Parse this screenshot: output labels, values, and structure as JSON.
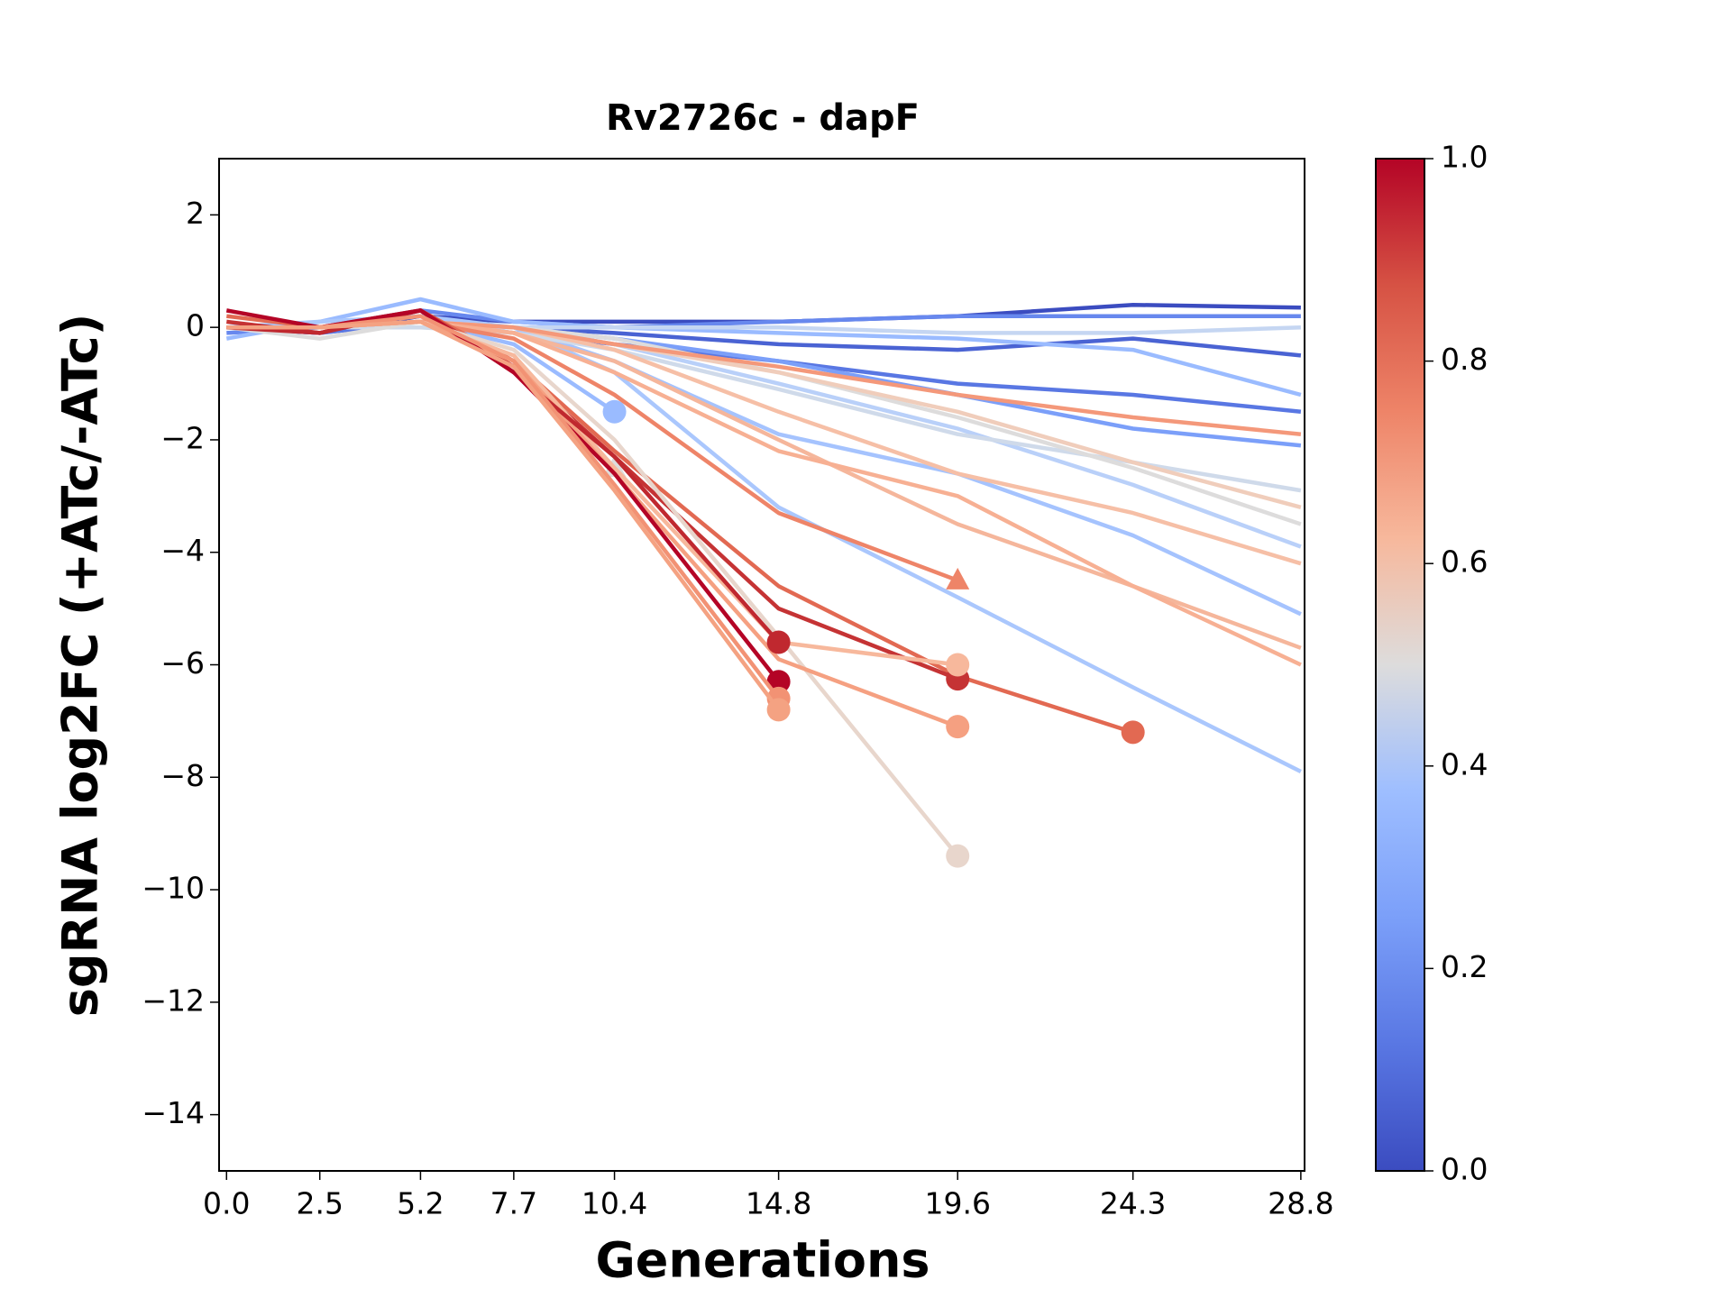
{
  "chart_data": {
    "type": "line",
    "title": "Rv2726c - dapF",
    "xlabel": "Generations",
    "ylabel": "sgRNA log2FC (+ATc/-ATc)",
    "x": [
      0,
      2.5,
      5.2,
      7.7,
      10.4,
      14.8,
      19.6,
      24.3,
      28.8
    ],
    "xlim": [
      -0.2,
      28.9
    ],
    "xticks": [
      {
        "value": 0,
        "label": "0.0"
      },
      2.5,
      5.2,
      7.7,
      10.4,
      14.8,
      19.6,
      24.3,
      28.8
    ],
    "ylim": [
      -15,
      3
    ],
    "yticks": [
      {
        "value": -14,
        "label": "−14"
      },
      {
        "value": -12,
        "label": "−12"
      },
      {
        "value": -10,
        "label": "−10"
      },
      {
        "value": -8,
        "label": "−8"
      },
      {
        "value": -6,
        "label": "−6"
      },
      {
        "value": -4,
        "label": "−4"
      },
      {
        "value": -2,
        "label": "−2"
      },
      0,
      2
    ],
    "colorbar": {
      "lim": [
        0,
        1
      ],
      "ticks": [
        {
          "value": 0,
          "label": "0.0"
        },
        0.2,
        0.4,
        0.6,
        0.8,
        {
          "value": 1,
          "label": "1.0"
        }
      ]
    },
    "series": [
      {
        "color": "#3b4cc0",
        "values": [
          0,
          -0.1,
          0.2,
          0.1,
          0.1,
          0.1,
          0.2,
          0.4,
          0.35
        ]
      },
      {
        "color": "#4a63d3",
        "values": [
          0,
          -0.1,
          0.1,
          0,
          -0.1,
          -0.3,
          -0.4,
          -0.2,
          -0.5
        ]
      },
      {
        "color": "#5977e3",
        "values": [
          0,
          -0.1,
          0.1,
          -0.1,
          -0.3,
          -0.6,
          -1.0,
          -1.2,
          -1.5
        ]
      },
      {
        "color": "#6788ee",
        "values": [
          -0.1,
          0,
          0.3,
          0.1,
          0,
          0.1,
          0.2,
          0.2,
          0.2
        ]
      },
      {
        "color": "#7b9ff9",
        "values": [
          0,
          0,
          0.1,
          0,
          -0.2,
          -0.6,
          -1.2,
          -1.8,
          -2.1
        ]
      },
      {
        "color": "#9abbff",
        "values": [
          -0.2,
          0.1,
          0.5,
          0.1,
          0,
          -0.1,
          -0.2,
          -0.4,
          -1.2
        ]
      },
      {
        "color": "#aac7fd",
        "values": [
          0,
          0.1,
          0.2,
          0,
          -0.8,
          -3.2,
          -4.8,
          -6.4,
          -7.9
        ]
      },
      {
        "color": "#a5c3fe",
        "values": [
          0,
          0,
          0.1,
          0,
          -0.6,
          -1.9,
          -2.6,
          -3.7,
          -5.1
        ]
      },
      {
        "color": "#b9d0f9",
        "values": [
          0,
          0,
          0.1,
          0,
          -0.3,
          -1.0,
          -1.8,
          -2.8,
          -3.9
        ]
      },
      {
        "color": "#c5d6f2",
        "values": [
          0,
          0,
          0,
          0,
          0,
          0,
          -0.1,
          -0.1,
          0
        ]
      },
      {
        "color": "#cfdaea",
        "values": [
          0,
          0,
          0,
          -0.1,
          -0.4,
          -1.1,
          -1.9,
          -2.4,
          -2.9
        ]
      },
      {
        "color": "#dddcdc",
        "values": [
          0,
          -0.2,
          0.1,
          0,
          -0.2,
          -0.8,
          -1.6,
          -2.5,
          -3.5
        ]
      },
      {
        "color": "#f0cdbb",
        "values": [
          0,
          0,
          0.1,
          0,
          -0.3,
          -0.8,
          -1.5,
          -2.4,
          -3.2
        ]
      },
      {
        "color": "#f6bfa6",
        "values": [
          0,
          0,
          0.1,
          0,
          -0.4,
          -1.5,
          -2.6,
          -3.3,
          -4.2
        ]
      },
      {
        "color": "#f5b69b",
        "values": [
          0,
          0,
          0.1,
          -0.1,
          -0.6,
          -2.0,
          -3.5,
          -4.6,
          -5.7
        ]
      },
      {
        "color": "#f4987a",
        "values": [
          0,
          0,
          0.1,
          0,
          -0.3,
          -0.7,
          -1.2,
          -1.6,
          -1.9
        ]
      },
      {
        "color": "#f7b093",
        "values": [
          0,
          0,
          0.1,
          -0.1,
          -0.8,
          -2.2,
          -3.0,
          -4.6,
          -6.0
        ]
      },
      {
        "color": "#9abbff",
        "marker": "o",
        "values": [
          0,
          0,
          0.1,
          -0.3,
          -1.5,
          null,
          null,
          null,
          null
        ]
      },
      {
        "color": "#dddcdc",
        "marker": "^",
        "values": [
          0,
          0,
          0.1,
          -0.5,
          -2.5,
          null,
          null,
          null,
          null
        ]
      },
      {
        "color": "#ee8468",
        "marker": "^",
        "values": [
          0,
          0,
          0.1,
          -0.2,
          -1.2,
          -3.3,
          -4.5,
          null,
          null
        ]
      },
      {
        "color": "#e26952",
        "marker": "o",
        "values": [
          0.2,
          0,
          0.3,
          -0.6,
          -2.2,
          -4.6,
          -6.2,
          -7.2,
          null
        ]
      },
      {
        "color": "#c53334",
        "marker": "o",
        "values": [
          0.1,
          -0.1,
          0.3,
          -0.7,
          -2.3,
          -5.0,
          -6.25,
          null,
          null
        ]
      },
      {
        "color": "#e8d6cc",
        "marker": "o",
        "values": [
          0,
          0,
          0.1,
          -0.4,
          -2.0,
          -5.5,
          -9.4,
          null,
          null
        ]
      },
      {
        "color": "#f7b89c",
        "marker": "o",
        "values": [
          0,
          0,
          0.1,
          -0.5,
          -2.5,
          -5.6,
          -6.0,
          null,
          null
        ]
      },
      {
        "color": "#f5a081",
        "marker": "o",
        "values": [
          0,
          0,
          0.1,
          -0.6,
          -2.6,
          -5.9,
          -7.1,
          null,
          null
        ]
      },
      {
        "color": "#c0282f",
        "marker": "o",
        "values": [
          0,
          -0.1,
          0.3,
          -0.8,
          -2.3,
          -5.6,
          null,
          null,
          null
        ]
      },
      {
        "color": "#b40426",
        "marker": "o",
        "values": [
          0.3,
          0,
          0.3,
          -0.8,
          -2.6,
          -6.3,
          null,
          null,
          null
        ]
      },
      {
        "color": "#f29274",
        "marker": "o",
        "values": [
          0,
          0,
          0.2,
          -0.6,
          -2.8,
          -6.6,
          null,
          null,
          null
        ]
      },
      {
        "color": "#f4a282",
        "marker": "o",
        "values": [
          0,
          0,
          0.1,
          -0.7,
          -2.9,
          -6.8,
          null,
          null,
          null
        ]
      }
    ]
  }
}
